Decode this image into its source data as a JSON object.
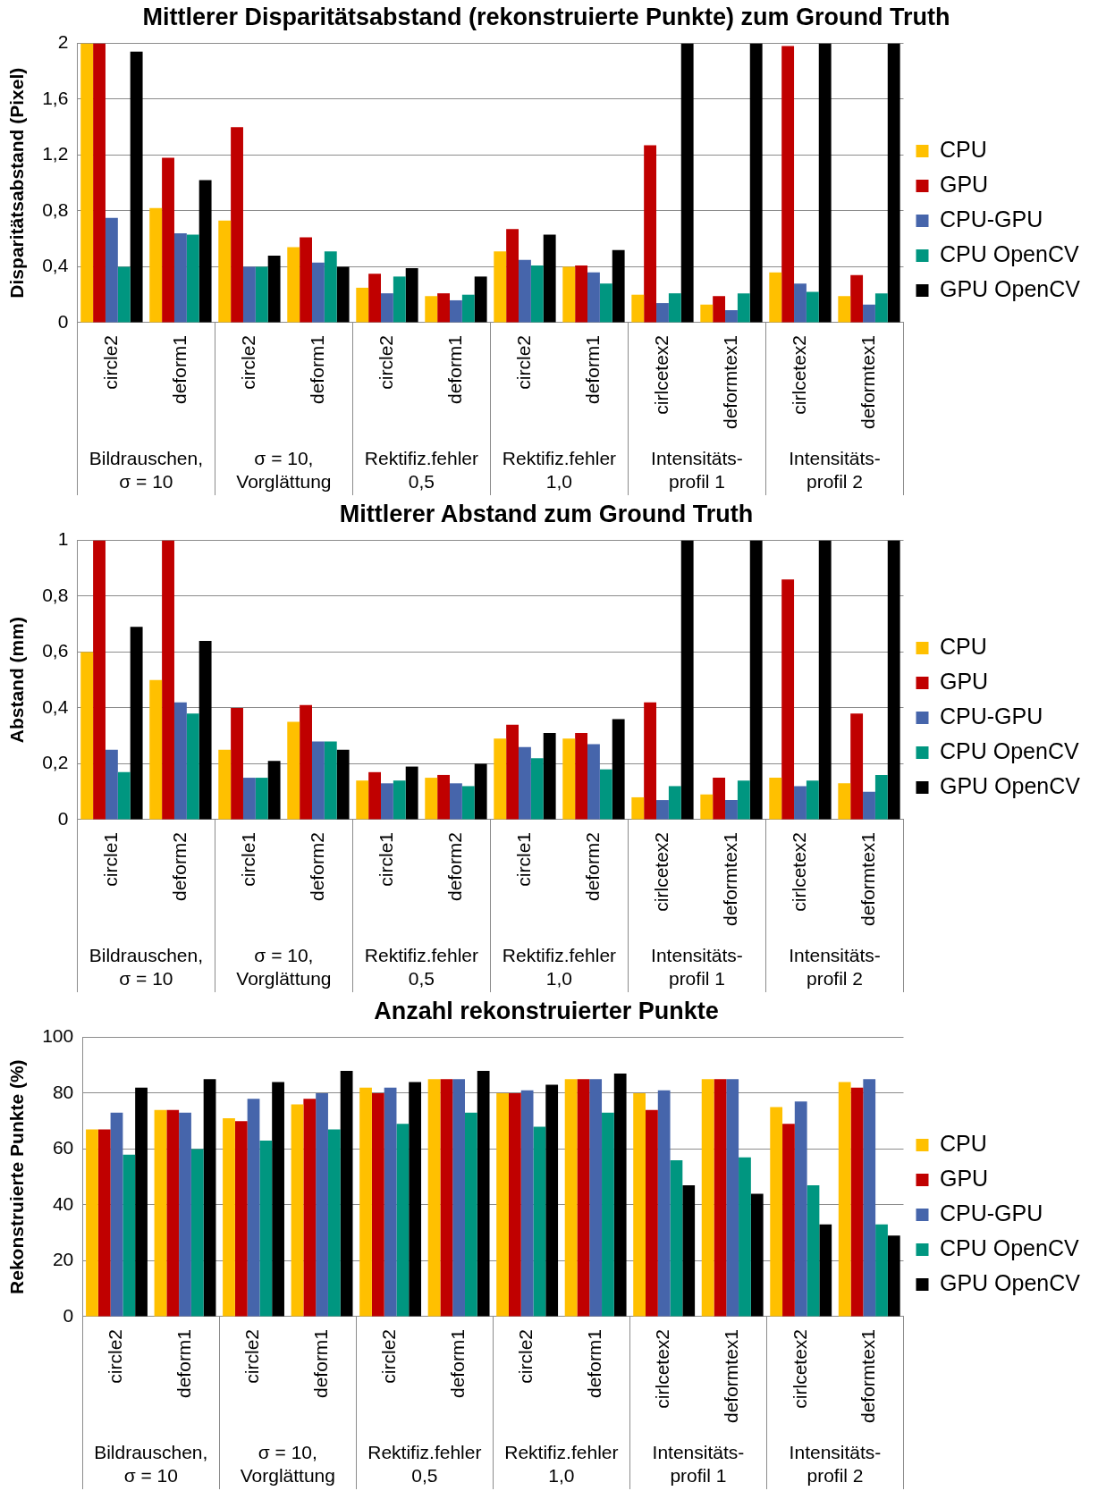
{
  "chart_data": [
    {
      "type": "bar",
      "title": "Mittlerer Disparitätsabstand (rekonstruierte Punkte) zum Ground Truth",
      "ylabel": "Disparitätsabstand (Pixel)",
      "categories": [
        "circle2",
        "deform1",
        "circle2",
        "deform1",
        "circle2",
        "deform1",
        "circle2",
        "deform1",
        "cirlcetex2",
        "deformtex1",
        "cirlcetex2",
        "deformtex1"
      ],
      "annotations": [
        "Bildrauschen,\nσ = 10",
        "σ = 10,\nVorglättung",
        "Rektifiz.fehler\n0,5",
        "Rektifiz.fehler\n1,0",
        "Intensitäts-\nprofil 1",
        "Intensitäts-\nprofil 2"
      ],
      "series": [
        {
          "name": "CPU",
          "color": "#ffc000",
          "values": [
            2,
            0.82,
            0.73,
            0.54,
            0.25,
            0.19,
            0.51,
            0.4,
            0.2,
            0.13,
            0.36,
            0.19
          ]
        },
        {
          "name": "GPU",
          "color": "#c00000",
          "values": [
            2,
            1.18,
            1.4,
            0.61,
            0.35,
            0.21,
            0.67,
            0.41,
            1.27,
            0.19,
            1.98,
            0.34
          ]
        },
        {
          "name": "CPU-GPU",
          "color": "#4665ab",
          "values": [
            0.75,
            0.64,
            0.4,
            0.43,
            0.21,
            0.16,
            0.45,
            0.36,
            0.14,
            0.09,
            0.28,
            0.13
          ]
        },
        {
          "name": "CPU OpenCV",
          "color": "#009680",
          "values": [
            0.4,
            0.63,
            0.4,
            0.51,
            0.33,
            0.2,
            0.41,
            0.28,
            0.21,
            0.21,
            0.22,
            0.21
          ]
        },
        {
          "name": "GPU OpenCV",
          "color": "#000000",
          "values": [
            1.94,
            1.02,
            0.48,
            0.4,
            0.39,
            0.33,
            0.63,
            0.52,
            2,
            2,
            2,
            2
          ]
        }
      ],
      "ylim": [
        0,
        2
      ],
      "yticks": [
        0,
        {
          "value": 0.4,
          "label": "0,4"
        },
        {
          "value": 0.8,
          "label": "0,8"
        },
        {
          "value": 1.2,
          "label": "1,2"
        },
        {
          "value": 1.6,
          "label": "1,6"
        },
        2
      ],
      "grid": "y",
      "legend": "right"
    },
    {
      "type": "bar",
      "title": "Mittlerer Abstand zum Ground Truth",
      "ylabel": "Abstand (mm)",
      "categories": [
        "circle1",
        "deform2",
        "circle1",
        "deform2",
        "circle1",
        "deform2",
        "circle1",
        "deform2",
        "cirlcetex2",
        "deformtex1",
        "cirlcetex2",
        "deformtex1"
      ],
      "annotations": [
        "Bildrauschen,\nσ = 10",
        "σ = 10,\nVorglättung",
        "Rektifiz.fehler\n0,5",
        "Rektifiz.fehler\n1,0",
        "Intensitäts-\nprofil 1",
        "Intensitäts-\nprofil 2"
      ],
      "series": [
        {
          "name": "CPU",
          "color": "#ffc000",
          "values": [
            0.6,
            0.5,
            0.25,
            0.35,
            0.14,
            0.15,
            0.29,
            0.29,
            0.08,
            0.09,
            0.15,
            0.13
          ]
        },
        {
          "name": "GPU",
          "color": "#c00000",
          "values": [
            1,
            1,
            0.4,
            0.41,
            0.17,
            0.16,
            0.34,
            0.31,
            0.42,
            0.15,
            0.86,
            0.38
          ]
        },
        {
          "name": "CPU-GPU",
          "color": "#4665ab",
          "values": [
            0.25,
            0.42,
            0.15,
            0.28,
            0.13,
            0.13,
            0.26,
            0.27,
            0.07,
            0.07,
            0.12,
            0.1
          ]
        },
        {
          "name": "CPU OpenCV",
          "color": "#009680",
          "values": [
            0.17,
            0.38,
            0.15,
            0.28,
            0.14,
            0.12,
            0.22,
            0.18,
            0.12,
            0.14,
            0.14,
            0.16
          ]
        },
        {
          "name": "GPU OpenCV",
          "color": "#000000",
          "values": [
            0.69,
            0.64,
            0.21,
            0.25,
            0.19,
            0.2,
            0.31,
            0.36,
            1,
            1,
            1,
            1
          ]
        }
      ],
      "ylim": [
        0,
        1
      ],
      "yticks": [
        0,
        {
          "value": 0.2,
          "label": "0,2"
        },
        {
          "value": 0.4,
          "label": "0,4"
        },
        {
          "value": 0.6,
          "label": "0,6"
        },
        {
          "value": 0.8,
          "label": "0,8"
        },
        1
      ],
      "grid": "y",
      "legend": "right"
    },
    {
      "type": "bar",
      "title": "Anzahl rekonstruierter Punkte",
      "ylabel": "Rekonstruierte Punkte (%)",
      "categories": [
        "circle2",
        "deform1",
        "circle2",
        "deform1",
        "circle2",
        "deform1",
        "circle2",
        "deform1",
        "cirlcetex2",
        "deformtex1",
        "cirlcetex2",
        "deformtex1"
      ],
      "annotations": [
        "Bildrauschen,\nσ = 10",
        "σ = 10,\nVorglättung",
        "Rektifiz.fehler\n0,5",
        "Rektifiz.fehler\n1,0",
        "Intensitäts-\nprofil 1",
        "Intensitäts-\nprofil 2"
      ],
      "series": [
        {
          "name": "CPU",
          "color": "#ffc000",
          "values": [
            67,
            74,
            71,
            76,
            82,
            85,
            80,
            85,
            80,
            85,
            75,
            84
          ]
        },
        {
          "name": "GPU",
          "color": "#c00000",
          "values": [
            67,
            74,
            70,
            78,
            80,
            85,
            80,
            85,
            74,
            85,
            69,
            82
          ]
        },
        {
          "name": "CPU-GPU",
          "color": "#4665ab",
          "values": [
            73,
            73,
            78,
            80,
            82,
            85,
            81,
            85,
            81,
            85,
            77,
            85
          ]
        },
        {
          "name": "CPU OpenCV",
          "color": "#009680",
          "values": [
            58,
            60,
            63,
            67,
            69,
            73,
            68,
            73,
            56,
            57,
            47,
            33
          ]
        },
        {
          "name": "GPU OpenCV",
          "color": "#000000",
          "values": [
            82,
            85,
            84,
            88,
            84,
            88,
            83,
            87,
            47,
            44,
            33,
            29
          ]
        }
      ],
      "ylim": [
        0,
        100
      ],
      "yticks": [
        0,
        20,
        40,
        60,
        80,
        100
      ],
      "grid": "y",
      "legend": "right"
    }
  ]
}
